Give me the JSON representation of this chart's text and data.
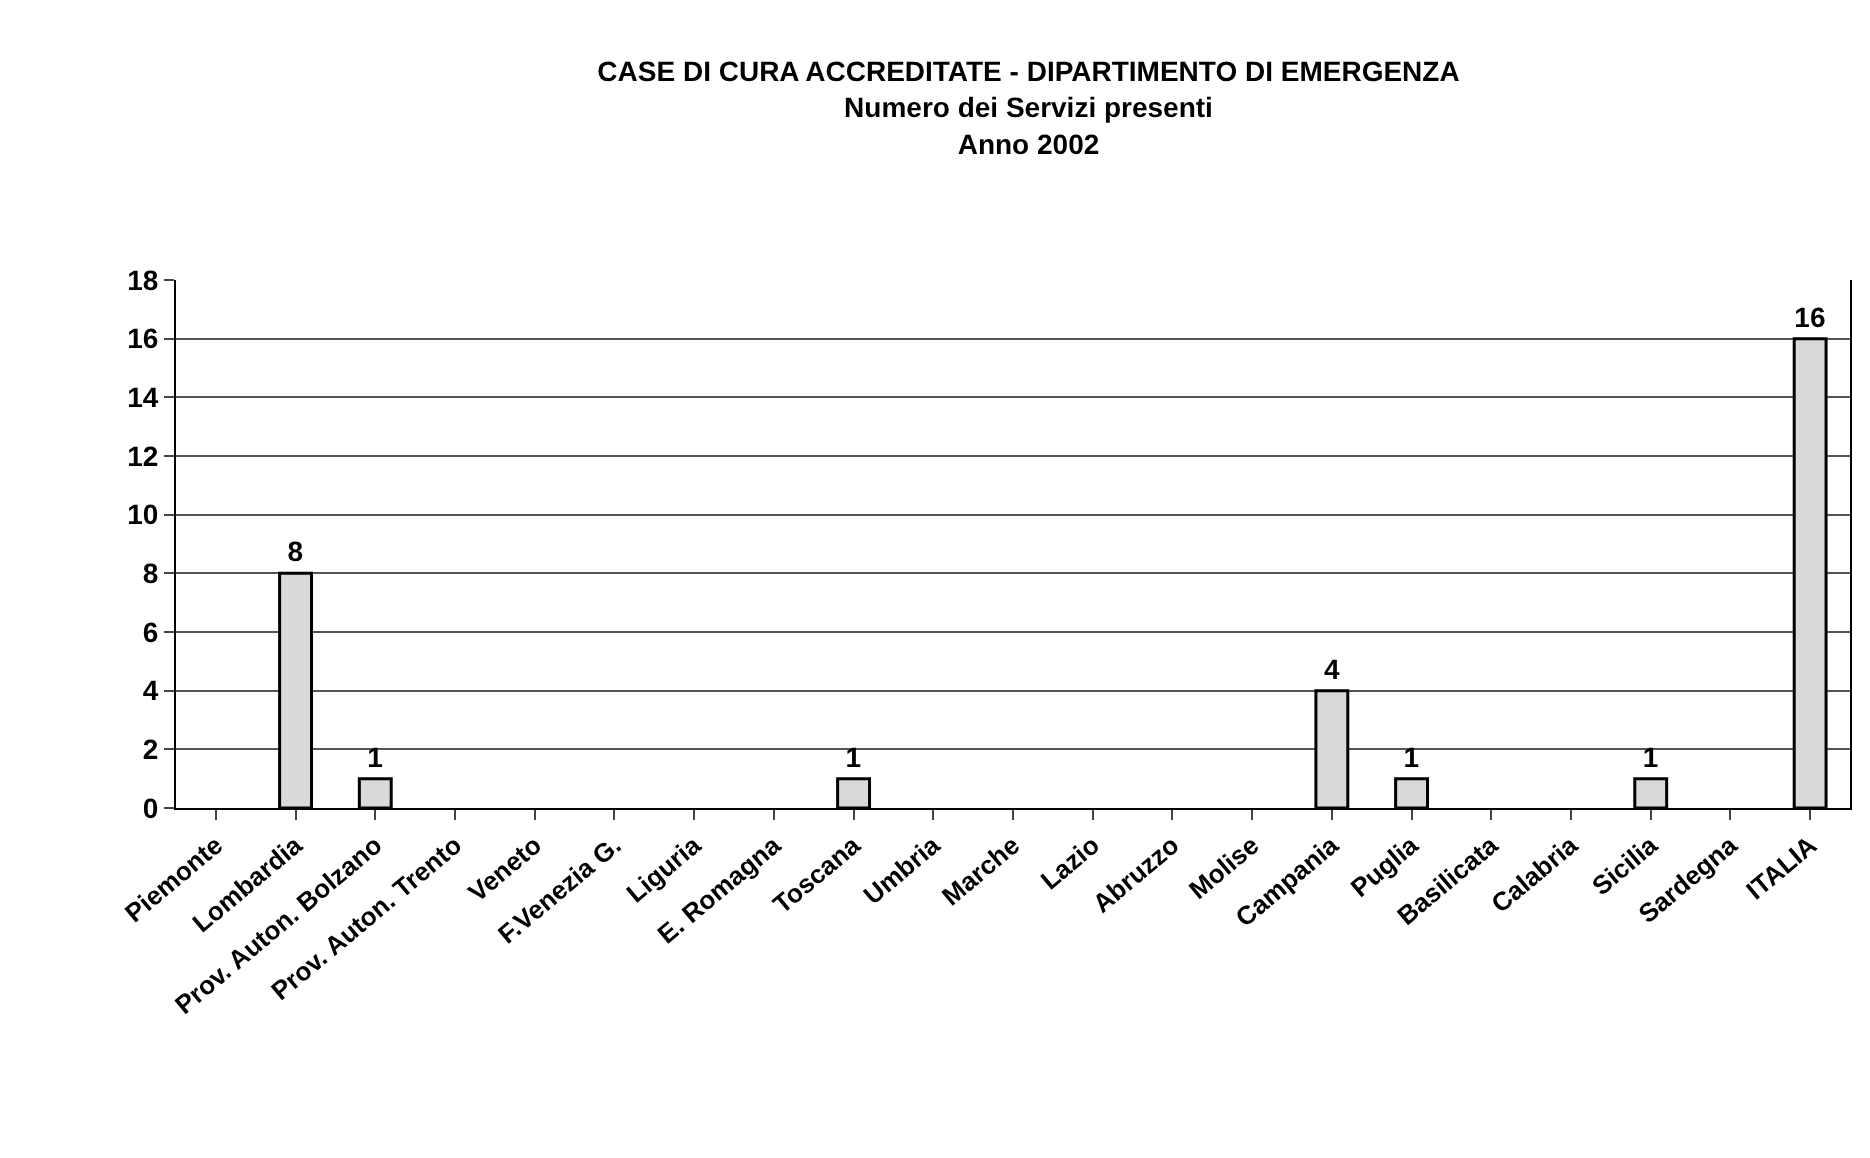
{
  "chart_data": {
    "type": "bar",
    "title": "CASE DI CURA ACCREDITATE - DIPARTIMENTO DI EMERGENZA",
    "subtitle": "Numero dei Servizi presenti\nAnno 2002",
    "categories": [
      "Piemonte",
      "Lombardia",
      "Prov. Auton. Bolzano",
      "Prov. Auton. Trento",
      "Veneto",
      "F.Venezia G.",
      "Liguria",
      "E. Romagna",
      "Toscana",
      "Umbria",
      "Marche",
      "Lazio",
      "Abruzzo",
      "Molise",
      "Campania",
      "Puglia",
      "Basilicata",
      "Calabria",
      "Sicilia",
      "Sardegna",
      "ITALIA"
    ],
    "values": [
      0,
      8,
      1,
      0,
      0,
      0,
      0,
      0,
      1,
      0,
      0,
      0,
      0,
      0,
      4,
      1,
      0,
      0,
      1,
      0,
      16
    ],
    "value_labels": [
      null,
      "8",
      "1",
      null,
      null,
      null,
      null,
      null,
      "1",
      null,
      null,
      null,
      null,
      null,
      "4",
      "1",
      null,
      null,
      "1",
      null,
      "16"
    ],
    "color": "#d9d9d9",
    "ylim": [
      0,
      18
    ],
    "yticks": [
      0,
      2,
      4,
      6,
      8,
      10,
      12,
      14,
      16,
      18
    ],
    "grid": "y",
    "legend": false
  }
}
